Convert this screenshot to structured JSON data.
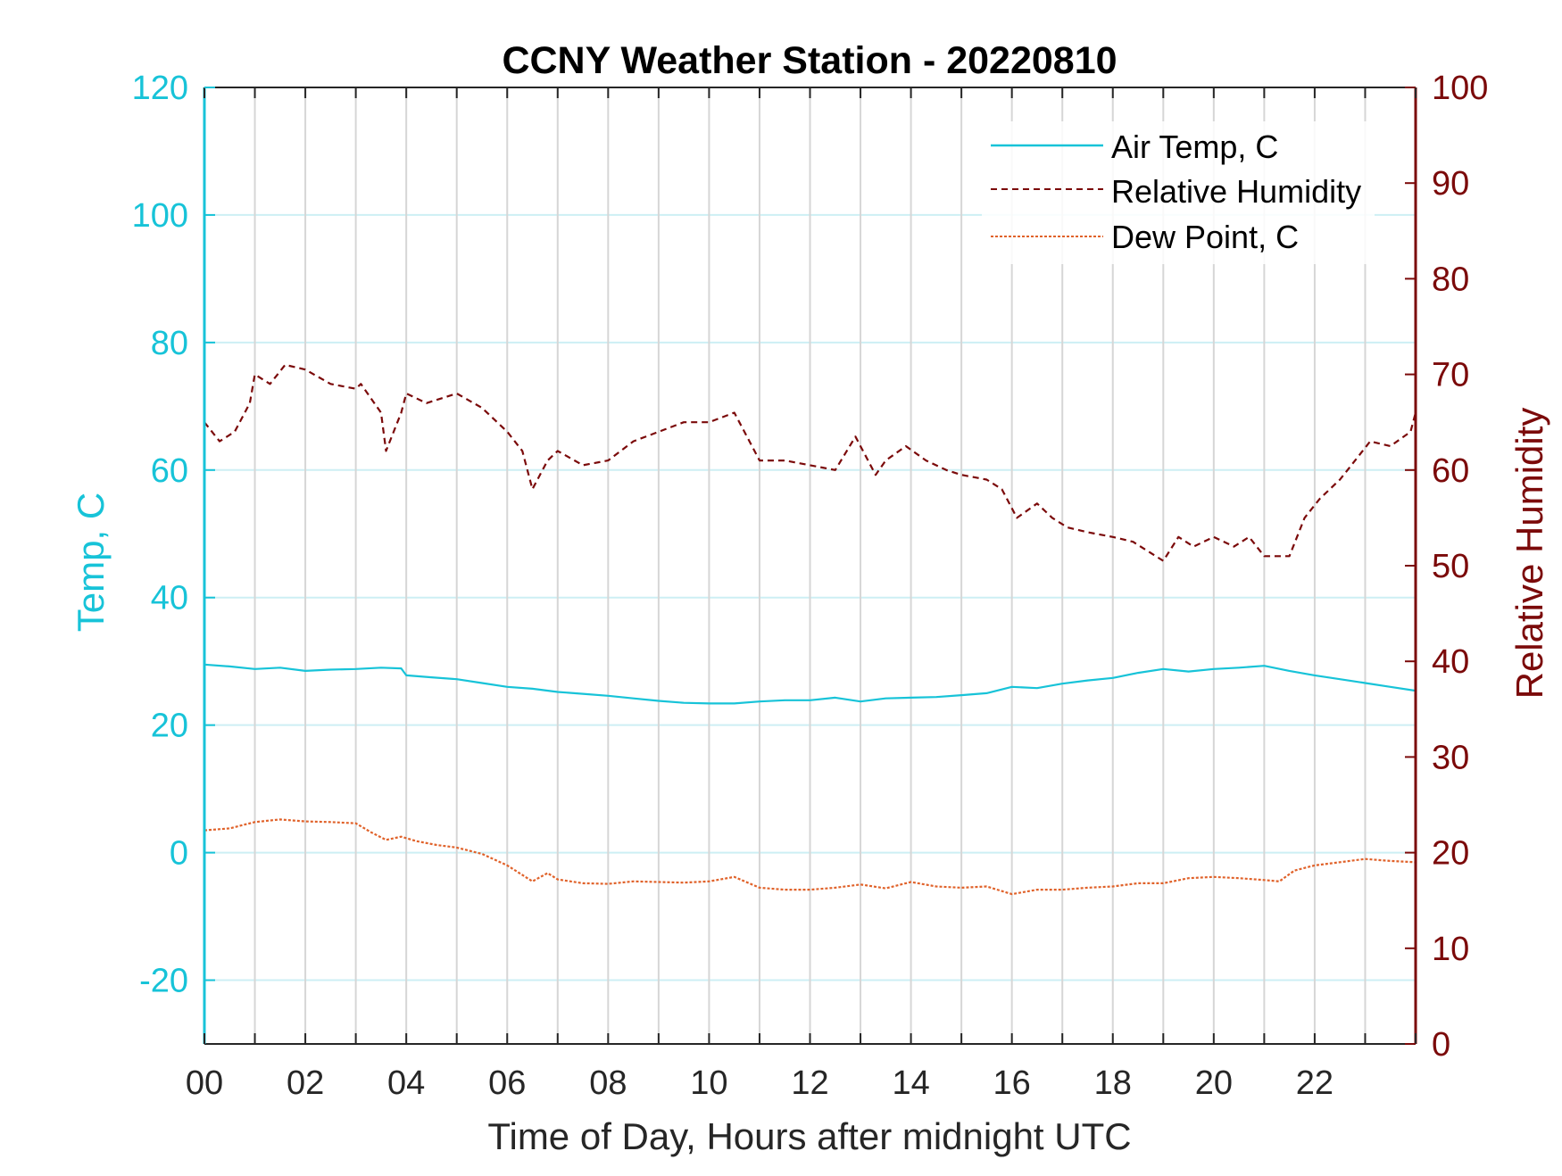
{
  "chart_data": {
    "type": "line",
    "title": "CCNY Weather Station - 20220810",
    "xlabel": "Time of Day, Hours after midnight UTC",
    "ylabel_left": "Temp, C",
    "ylabel_right": "Relative Humidity",
    "xlim": [
      0,
      24
    ],
    "ylim_left": [
      -30,
      120
    ],
    "ylim_right": [
      0,
      100
    ],
    "x_ticks": [
      "00",
      "02",
      "04",
      "06",
      "08",
      "10",
      "12",
      "14",
      "16",
      "18",
      "20",
      "22"
    ],
    "y_ticks_left": [
      "-20",
      "0",
      "20",
      "40",
      "60",
      "80",
      "100",
      "120"
    ],
    "y_ticks_right": [
      "0",
      "10",
      "20",
      "30",
      "40",
      "50",
      "60",
      "70",
      "80",
      "90",
      "100"
    ],
    "grid": true,
    "legend_position": "top-right",
    "colors": {
      "left_axis": "#17c3d8",
      "right_axis": "#7b0a0a",
      "air_temp": "#17c3d8",
      "humidity": "#7b0a0a",
      "dew_point": "#e0622a",
      "grid_vertical": "#d6d6d6",
      "grid_horizontal": "#cdeff4"
    },
    "series": [
      {
        "name": "Air Temp, C",
        "axis": "left",
        "style": "solid",
        "x": [
          0,
          0.5,
          1,
          1.5,
          2,
          2.5,
          3,
          3.5,
          3.9,
          4,
          4.5,
          5,
          5.5,
          6,
          6.5,
          7,
          7.5,
          8,
          8.5,
          9,
          9.5,
          10,
          10.5,
          11,
          11.5,
          12,
          12.5,
          13,
          13.5,
          14,
          14.5,
          15,
          15.5,
          16,
          16.5,
          17,
          17.5,
          18,
          18.5,
          19,
          19.5,
          20,
          20.5,
          21,
          21.5,
          22,
          22.5,
          23,
          23.5,
          24
        ],
        "values": [
          29.5,
          29.2,
          28.8,
          29.0,
          28.5,
          28.7,
          28.8,
          29.0,
          28.9,
          27.8,
          27.5,
          27.2,
          26.6,
          26.0,
          25.7,
          25.2,
          24.9,
          24.6,
          24.2,
          23.8,
          23.5,
          23.4,
          23.4,
          23.7,
          23.9,
          23.9,
          24.3,
          23.7,
          24.2,
          24.3,
          24.4,
          24.7,
          25.0,
          26.0,
          25.8,
          26.5,
          27.0,
          27.4,
          28.2,
          28.8,
          28.4,
          28.8,
          29.0,
          29.3,
          28.5,
          27.8,
          27.2,
          26.6,
          26.0,
          25.4
        ]
      },
      {
        "name": "Relative Humidity",
        "axis": "right",
        "style": "dashed",
        "x": [
          0,
          0.3,
          0.6,
          0.9,
          1,
          1.3,
          1.6,
          2,
          2.5,
          3,
          3.1,
          3.5,
          3.6,
          3.9,
          4.0,
          4.4,
          4.7,
          5.0,
          5.5,
          6.0,
          6.3,
          6.5,
          6.8,
          7.0,
          7.5,
          8.0,
          8.5,
          9.0,
          9.5,
          10.0,
          10.5,
          11.0,
          11.5,
          12.0,
          12.5,
          12.9,
          13.3,
          13.5,
          13.9,
          14.3,
          14.7,
          15.0,
          15.5,
          15.8,
          16.1,
          16.5,
          16.8,
          17.1,
          17.5,
          18.0,
          18.4,
          18.7,
          19.0,
          19.3,
          19.6,
          20.0,
          20.4,
          20.7,
          21.0,
          21.5,
          21.8,
          22.1,
          22.5,
          22.8,
          23.1,
          23.5,
          23.9,
          24.0
        ],
        "values": [
          65,
          63,
          64,
          67,
          70,
          69,
          71,
          70.5,
          69,
          68.5,
          69,
          66,
          62,
          66,
          68,
          67,
          67.5,
          68,
          66.5,
          64,
          62,
          58,
          61,
          62,
          60.5,
          61,
          63,
          64,
          65,
          65,
          66,
          61,
          61,
          60.5,
          60,
          63.5,
          59.5,
          61,
          62.5,
          61,
          60,
          59.5,
          59,
          58,
          55,
          56.5,
          55,
          54,
          53.5,
          53,
          52.5,
          51.5,
          50.5,
          53,
          52,
          53,
          52,
          53,
          51,
          51,
          55,
          57,
          59,
          61,
          63,
          62.5,
          64,
          66
        ]
      },
      {
        "name": "Dew Point, C",
        "axis": "left",
        "style": "dotted",
        "x": [
          0,
          0.5,
          1,
          1.5,
          2,
          2.5,
          3,
          3.3,
          3.6,
          3.9,
          4.2,
          4.6,
          5.0,
          5.5,
          6.0,
          6.3,
          6.5,
          6.8,
          7.0,
          7.5,
          8.0,
          8.5,
          9.0,
          9.5,
          10.0,
          10.5,
          11.0,
          11.5,
          12.0,
          12.5,
          13.0,
          13.5,
          14.0,
          14.5,
          15.0,
          15.5,
          16.0,
          16.5,
          17.0,
          17.5,
          18.0,
          18.5,
          19.0,
          19.5,
          20.0,
          20.5,
          21.0,
          21.3,
          21.6,
          22.0,
          22.5,
          23.0,
          23.5,
          24.0
        ],
        "values": [
          3.5,
          3.8,
          4.8,
          5.2,
          4.9,
          4.8,
          4.6,
          3.2,
          2.0,
          2.5,
          1.8,
          1.2,
          0.8,
          -0.2,
          -2.0,
          -3.5,
          -4.5,
          -3.2,
          -4.2,
          -4.8,
          -4.9,
          -4.5,
          -4.6,
          -4.7,
          -4.5,
          -3.8,
          -5.5,
          -5.8,
          -5.8,
          -5.5,
          -5.0,
          -5.6,
          -4.6,
          -5.3,
          -5.5,
          -5.3,
          -6.5,
          -5.8,
          -5.8,
          -5.5,
          -5.3,
          -4.8,
          -4.8,
          -4.0,
          -3.8,
          -4.0,
          -4.3,
          -4.5,
          -2.8,
          -2.0,
          -1.5,
          -1.0,
          -1.3,
          -1.5
        ]
      }
    ]
  }
}
